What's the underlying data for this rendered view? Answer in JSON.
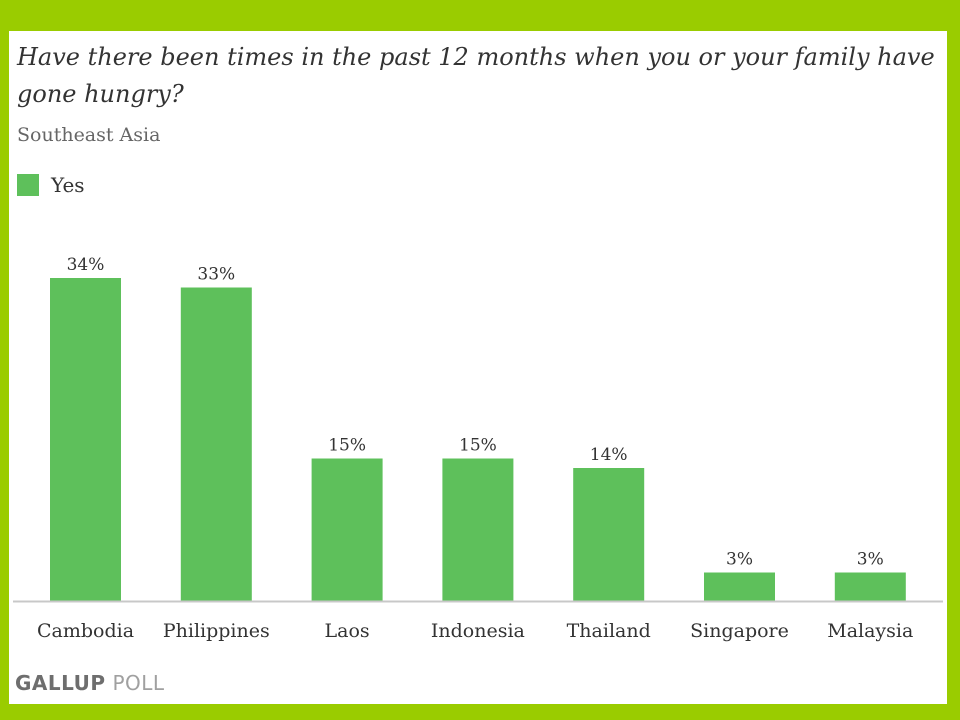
{
  "title": "Have there been times in the past 12 months when you or your family have gone hungry?",
  "subtitle": "Southeast Asia",
  "source": {
    "brand": "GALLUP",
    "suffix": "POLL"
  },
  "colors": {
    "background": "#9acc00",
    "bar": "#5ec05b",
    "axis": "#c8c8c8"
  },
  "chart_data": {
    "type": "bar",
    "categories": [
      "Cambodia",
      "Philippines",
      "Laos",
      "Indonesia",
      "Thailand",
      "Singapore",
      "Malaysia"
    ],
    "series": [
      {
        "name": "Yes",
        "values": [
          34,
          33,
          15,
          15,
          14,
          3,
          3
        ],
        "labels": [
          "34%",
          "33%",
          "15%",
          "15%",
          "14%",
          "3%",
          "3%"
        ]
      }
    ],
    "ylim": [
      0,
      34
    ],
    "grid": false,
    "legend": "top-left",
    "xlabel": "",
    "ylabel": ""
  }
}
